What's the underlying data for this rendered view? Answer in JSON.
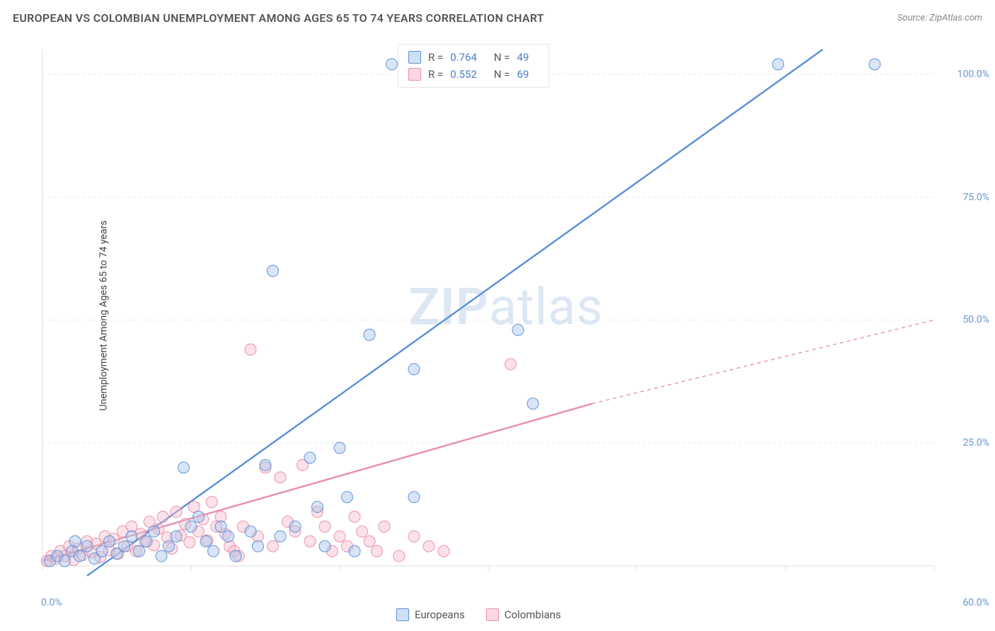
{
  "header": {
    "title": "EUROPEAN VS COLOMBIAN UNEMPLOYMENT AMONG AGES 65 TO 74 YEARS CORRELATION CHART",
    "source": "Source: ZipAtlas.com"
  },
  "watermark": {
    "zip": "ZIP",
    "atlas": "atlas"
  },
  "chart": {
    "type": "scatter",
    "background_color": "#ffffff",
    "grid_color": "#e8e8e8",
    "axis_color": "#dddddd",
    "tick_label_color": "#6a95d4",
    "axis_label_color": "#444444",
    "y_axis_label": "Unemployment Among Ages 65 to 74 years",
    "xlim": [
      0,
      60
    ],
    "ylim": [
      0,
      105
    ],
    "x_ticks": [
      0,
      10,
      20,
      30,
      40,
      50,
      60
    ],
    "x_tick_labels_shown": {
      "start": "0.0%",
      "end": "60.0%"
    },
    "y_ticks": [
      25,
      50,
      75,
      100
    ],
    "y_tick_labels": [
      "25.0%",
      "50.0%",
      "75.0%",
      "100.0%"
    ],
    "marker_radius": 8,
    "marker_fill_opacity": 0.45,
    "marker_stroke_opacity": 0.8,
    "marker_stroke_width": 1.2,
    "trendline_width": 2.4,
    "series": {
      "europeans": {
        "label": "Europeans",
        "color": "#5a8fd6",
        "fill": "#a9c6eb",
        "points": [
          [
            0.5,
            1
          ],
          [
            1,
            2
          ],
          [
            1.5,
            1
          ],
          [
            2,
            3
          ],
          [
            2.2,
            5
          ],
          [
            2.5,
            2
          ],
          [
            3,
            4
          ],
          [
            3.5,
            1.5
          ],
          [
            4,
            3
          ],
          [
            4.5,
            5
          ],
          [
            5,
            2.5
          ],
          [
            5.5,
            4
          ],
          [
            6,
            6
          ],
          [
            6.5,
            3
          ],
          [
            7,
            5
          ],
          [
            7.5,
            7
          ],
          [
            8,
            2
          ],
          [
            8.5,
            4
          ],
          [
            9,
            6
          ],
          [
            9.5,
            20
          ],
          [
            10,
            8
          ],
          [
            10.5,
            10
          ],
          [
            11,
            5
          ],
          [
            11.5,
            3
          ],
          [
            12,
            8
          ],
          [
            12.5,
            6
          ],
          [
            13,
            2
          ],
          [
            14,
            7
          ],
          [
            14.5,
            4
          ],
          [
            15,
            20.5
          ],
          [
            15.5,
            60
          ],
          [
            16,
            6
          ],
          [
            17,
            8
          ],
          [
            18,
            22
          ],
          [
            18.5,
            12
          ],
          [
            19,
            4
          ],
          [
            20,
            24
          ],
          [
            20.5,
            14
          ],
          [
            21,
            3
          ],
          [
            22,
            47
          ],
          [
            23.5,
            102
          ],
          [
            24.5,
            102
          ],
          [
            25,
            14
          ],
          [
            25,
            40
          ],
          [
            30.5,
            102
          ],
          [
            32,
            48
          ],
          [
            33,
            33
          ],
          [
            49.5,
            102
          ],
          [
            56,
            102
          ]
        ],
        "trendline": {
          "x1": 3,
          "y1": -2,
          "x2": 52.5,
          "y2": 105,
          "dash": "none"
        }
      },
      "colombians": {
        "label": "Colombians",
        "color": "#e88fa8",
        "fill": "#f6bccc",
        "points": [
          [
            0.3,
            1
          ],
          [
            0.6,
            2
          ],
          [
            0.9,
            1.5
          ],
          [
            1.2,
            3
          ],
          [
            1.5,
            2
          ],
          [
            1.8,
            4
          ],
          [
            2.1,
            1.2
          ],
          [
            2.4,
            3.5
          ],
          [
            2.7,
            2.2
          ],
          [
            3,
            5
          ],
          [
            3.3,
            2.8
          ],
          [
            3.6,
            4.5
          ],
          [
            3.9,
            1.8
          ],
          [
            4.2,
            6
          ],
          [
            4.5,
            3.2
          ],
          [
            4.8,
            5.5
          ],
          [
            5.1,
            2.5
          ],
          [
            5.4,
            7
          ],
          [
            5.7,
            4
          ],
          [
            6,
            8
          ],
          [
            6.3,
            3
          ],
          [
            6.6,
            6.5
          ],
          [
            6.9,
            5
          ],
          [
            7.2,
            9
          ],
          [
            7.5,
            4.2
          ],
          [
            7.8,
            7.5
          ],
          [
            8.1,
            10
          ],
          [
            8.4,
            5.8
          ],
          [
            8.7,
            3.5
          ],
          [
            9,
            11
          ],
          [
            9.3,
            6.2
          ],
          [
            9.6,
            8.5
          ],
          [
            9.9,
            4.8
          ],
          [
            10.2,
            12
          ],
          [
            10.5,
            7
          ],
          [
            10.8,
            9.5
          ],
          [
            11.1,
            5.2
          ],
          [
            11.4,
            13
          ],
          [
            11.7,
            8
          ],
          [
            12,
            10
          ],
          [
            12.3,
            6.5
          ],
          [
            12.6,
            4
          ],
          [
            12.9,
            3
          ],
          [
            13.2,
            2
          ],
          [
            13.5,
            8
          ],
          [
            14,
            44
          ],
          [
            14.5,
            6
          ],
          [
            15,
            20
          ],
          [
            15.5,
            4
          ],
          [
            16,
            18
          ],
          [
            16.5,
            9
          ],
          [
            17,
            7
          ],
          [
            17.5,
            20.5
          ],
          [
            18,
            5
          ],
          [
            18.5,
            11
          ],
          [
            19,
            8
          ],
          [
            19.5,
            3
          ],
          [
            20,
            6
          ],
          [
            20.5,
            4
          ],
          [
            21,
            10
          ],
          [
            21.5,
            7
          ],
          [
            22,
            5
          ],
          [
            22.5,
            3
          ],
          [
            23,
            8
          ],
          [
            24,
            2
          ],
          [
            25,
            6
          ],
          [
            26,
            4
          ],
          [
            27,
            3
          ],
          [
            31.5,
            41
          ]
        ],
        "trendline_solid": {
          "x1": 0,
          "y1": 1,
          "x2": 37,
          "y2": 33
        },
        "trendline_dashed": {
          "x1": 37,
          "y1": 33,
          "x2": 60,
          "y2": 50
        }
      }
    },
    "stats_box": {
      "rows": [
        {
          "swatch_fill": "#cfe0f5",
          "swatch_border": "#5a8fd6",
          "r_label": "R =",
          "r_value": "0.764",
          "n_label": "N =",
          "n_value": "49"
        },
        {
          "swatch_fill": "#fbd8e1",
          "swatch_border": "#e88fa8",
          "r_label": "R =",
          "r_value": "0.552",
          "n_label": "N =",
          "n_value": "69"
        }
      ]
    },
    "bottom_legend": {
      "items": [
        {
          "swatch_fill": "#cfe0f5",
          "swatch_border": "#5a8fd6",
          "label": "Europeans"
        },
        {
          "swatch_fill": "#fbd8e1",
          "swatch_border": "#e88fa8",
          "label": "Colombians"
        }
      ]
    }
  }
}
